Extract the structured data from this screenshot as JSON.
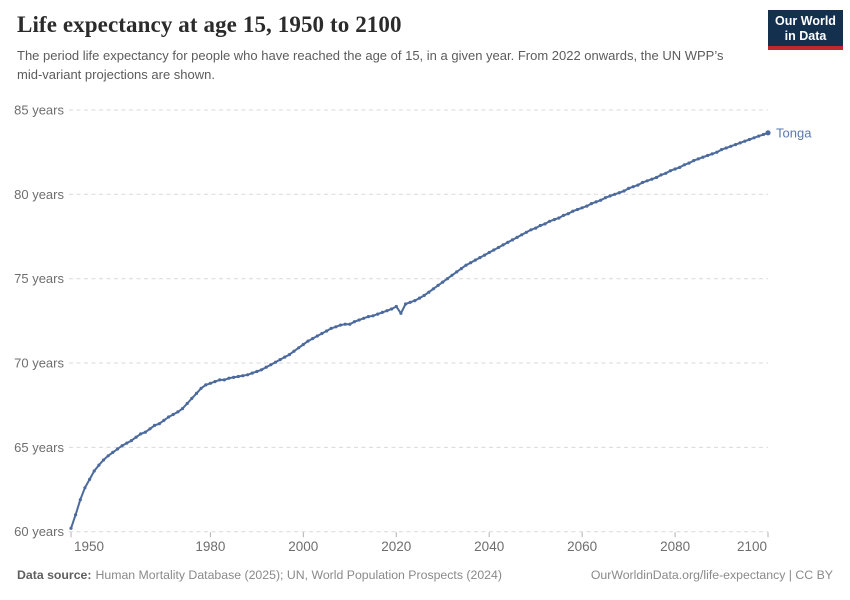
{
  "header": {
    "title": "Life expectancy at age 15, 1950 to 2100",
    "subtitle": "The period life expectancy for people who have reached the age of 15, in a given year. From 2022 onwards, the UN WPP’s mid-variant projections are shown.",
    "logo": {
      "line1": "Our World",
      "line2": "in Data"
    }
  },
  "footer": {
    "source_label": "Data source:",
    "source_text": "Human Mortality Database (2025); UN, World Population Prospects (2024)",
    "link_text": "OurWorldinData.org/life-expectancy | CC BY"
  },
  "colors": {
    "series_line": "#4C6A9C",
    "series_label": "#5b79ad",
    "gridline": "#d9d9d9",
    "tick_text": "#6e6e6e",
    "tick_mark": "#b0b0b0",
    "title_text": "#2b2b2b",
    "subtitle_text": "#5c5c5c",
    "footer_text": "#8a8a8a",
    "logo_navy": "#14304f",
    "logo_red": "#c0282d"
  },
  "chart_data": {
    "type": "line",
    "title": "Life expectancy at age 15, 1950 to 2100",
    "xlabel": "",
    "ylabel": "",
    "xlim": [
      1950,
      2100
    ],
    "ylim": [
      60,
      85
    ],
    "x_ticks": [
      1950,
      1980,
      2000,
      2020,
      2040,
      2060,
      2080,
      2100
    ],
    "y_ticks": [
      60,
      65,
      70,
      75,
      80,
      85
    ],
    "y_tick_suffix": " years",
    "grid": "horizontal-dashed",
    "legend_position": "end-of-line-label",
    "notes": "Markers at yearly intervals; dip at 2021; values from 2022 onwards are UN WPP mid-variant projections.",
    "series": [
      {
        "name": "Tonga",
        "color": "#4C6A9C",
        "x_start": 1950,
        "x_step": 1,
        "values": [
          60.2,
          61.0,
          61.9,
          62.6,
          63.1,
          63.6,
          63.95,
          64.25,
          64.5,
          64.7,
          64.9,
          65.1,
          65.25,
          65.4,
          65.6,
          65.8,
          65.9,
          66.1,
          66.3,
          66.4,
          66.6,
          66.8,
          66.95,
          67.1,
          67.3,
          67.6,
          67.9,
          68.2,
          68.5,
          68.7,
          68.8,
          68.9,
          69.0,
          69.0,
          69.1,
          69.15,
          69.2,
          69.25,
          69.3,
          69.4,
          69.5,
          69.6,
          69.75,
          69.9,
          70.05,
          70.2,
          70.35,
          70.5,
          70.7,
          70.9,
          71.1,
          71.3,
          71.45,
          71.6,
          71.75,
          71.9,
          72.05,
          72.15,
          72.25,
          72.3,
          72.3,
          72.45,
          72.55,
          72.65,
          72.75,
          72.8,
          72.9,
          73.0,
          73.1,
          73.2,
          73.35,
          72.95,
          73.5,
          73.6,
          73.7,
          73.85,
          74.0,
          74.2,
          74.4,
          74.6,
          74.8,
          75.0,
          75.2,
          75.4,
          75.6,
          75.8,
          75.95,
          76.1,
          76.25,
          76.4,
          76.55,
          76.7,
          76.85,
          77.0,
          77.15,
          77.3,
          77.45,
          77.6,
          77.75,
          77.9,
          78.0,
          78.15,
          78.25,
          78.4,
          78.5,
          78.6,
          78.75,
          78.85,
          79.0,
          79.1,
          79.2,
          79.3,
          79.45,
          79.55,
          79.65,
          79.8,
          79.9,
          80.0,
          80.1,
          80.2,
          80.35,
          80.45,
          80.55,
          80.7,
          80.8,
          80.9,
          81.0,
          81.15,
          81.25,
          81.4,
          81.5,
          81.6,
          81.75,
          81.85,
          82.0,
          82.1,
          82.2,
          82.3,
          82.4,
          82.5,
          82.65,
          82.75,
          82.85,
          82.95,
          83.05,
          83.15,
          83.25,
          83.35,
          83.45,
          83.55,
          83.65
        ]
      }
    ]
  }
}
